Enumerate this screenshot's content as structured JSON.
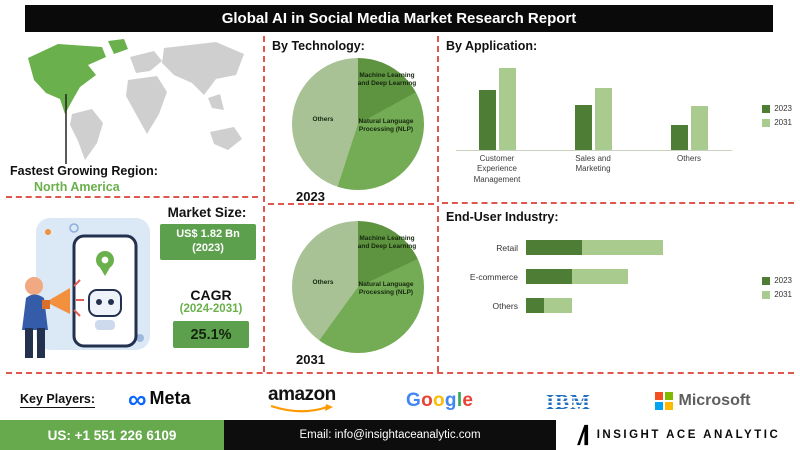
{
  "header": {
    "title": "Global AI in Social Media Market Research Report"
  },
  "left": {
    "region_label": "Fastest Growing Region:",
    "region_value": "North America",
    "market_size_label": "Market Size:",
    "market_size_value": "US$ 1.82 Bn (2023)",
    "cagr_label": "CAGR",
    "cagr_period": "(2024-2031)",
    "cagr_value": "25.1%"
  },
  "colors": {
    "accent_green": "#5ca04e",
    "region_green": "#6ab04c",
    "bar_2023": "#4e7d35",
    "bar_2031": "#a9cb8d",
    "dashed_divider": "#e0574f",
    "google": [
      "#4285F4",
      "#EA4335",
      "#FBBC05",
      "#4285F4",
      "#34A853",
      "#EA4335"
    ],
    "microsoft": [
      "#F25022",
      "#7FBA00",
      "#00A4EF",
      "#FFB900"
    ]
  },
  "chart_data": [
    {
      "type": "pie",
      "title": "By Technology:",
      "year": "2023",
      "slices": [
        {
          "label": "Machine Learning and Deep Learning",
          "value": 17,
          "color": "#5e9340"
        },
        {
          "label": "Natural Language Processing (NLP)",
          "value": 38,
          "color": "#74ab55"
        },
        {
          "label": "Others",
          "value": 45,
          "color": "#a9c295"
        }
      ]
    },
    {
      "type": "pie",
      "title": "By Technology:",
      "year": "2031",
      "slices": [
        {
          "label": "Machine Learning and Deep Learning",
          "value": 18,
          "color": "#5e9340"
        },
        {
          "label": "Natural Language Processing (NLP)",
          "value": 42,
          "color": "#74ab55"
        },
        {
          "label": "Others",
          "value": 40,
          "color": "#a9c295"
        }
      ]
    },
    {
      "type": "bar",
      "title": "By Application:",
      "categories": [
        "Customer Experience Management",
        "Sales and Marketing",
        "Others"
      ],
      "series": [
        {
          "name": "2023",
          "color": "#4e7d35",
          "values": [
            60,
            45,
            25
          ]
        },
        {
          "name": "2031",
          "color": "#a9cb8d",
          "values": [
            82,
            62,
            44
          ]
        }
      ],
      "ylim": [
        0,
        100
      ],
      "legend_position": "right",
      "grid": false
    },
    {
      "type": "bar-horizontal",
      "title": "End-User Industry:",
      "categories": [
        "Retail",
        "E-commerce",
        "Others"
      ],
      "series": [
        {
          "name": "2023",
          "color": "#4e7d35",
          "values": [
            32,
            26,
            10
          ]
        },
        {
          "name": "2031",
          "color": "#a9cb8d",
          "values": [
            78,
            58,
            26
          ]
        }
      ],
      "xlim": [
        0,
        100
      ],
      "legend_position": "right",
      "grid": false
    }
  ],
  "key_players": {
    "label": "Key Players:",
    "names": [
      "Meta",
      "amazon",
      "Google",
      "IBM",
      "Microsoft"
    ]
  },
  "footer": {
    "phone": "US: +1 551 226 6109",
    "email": "Email: info@insightaceanalytic.com",
    "brand": "INSIGHT ACE ANALYTIC"
  }
}
